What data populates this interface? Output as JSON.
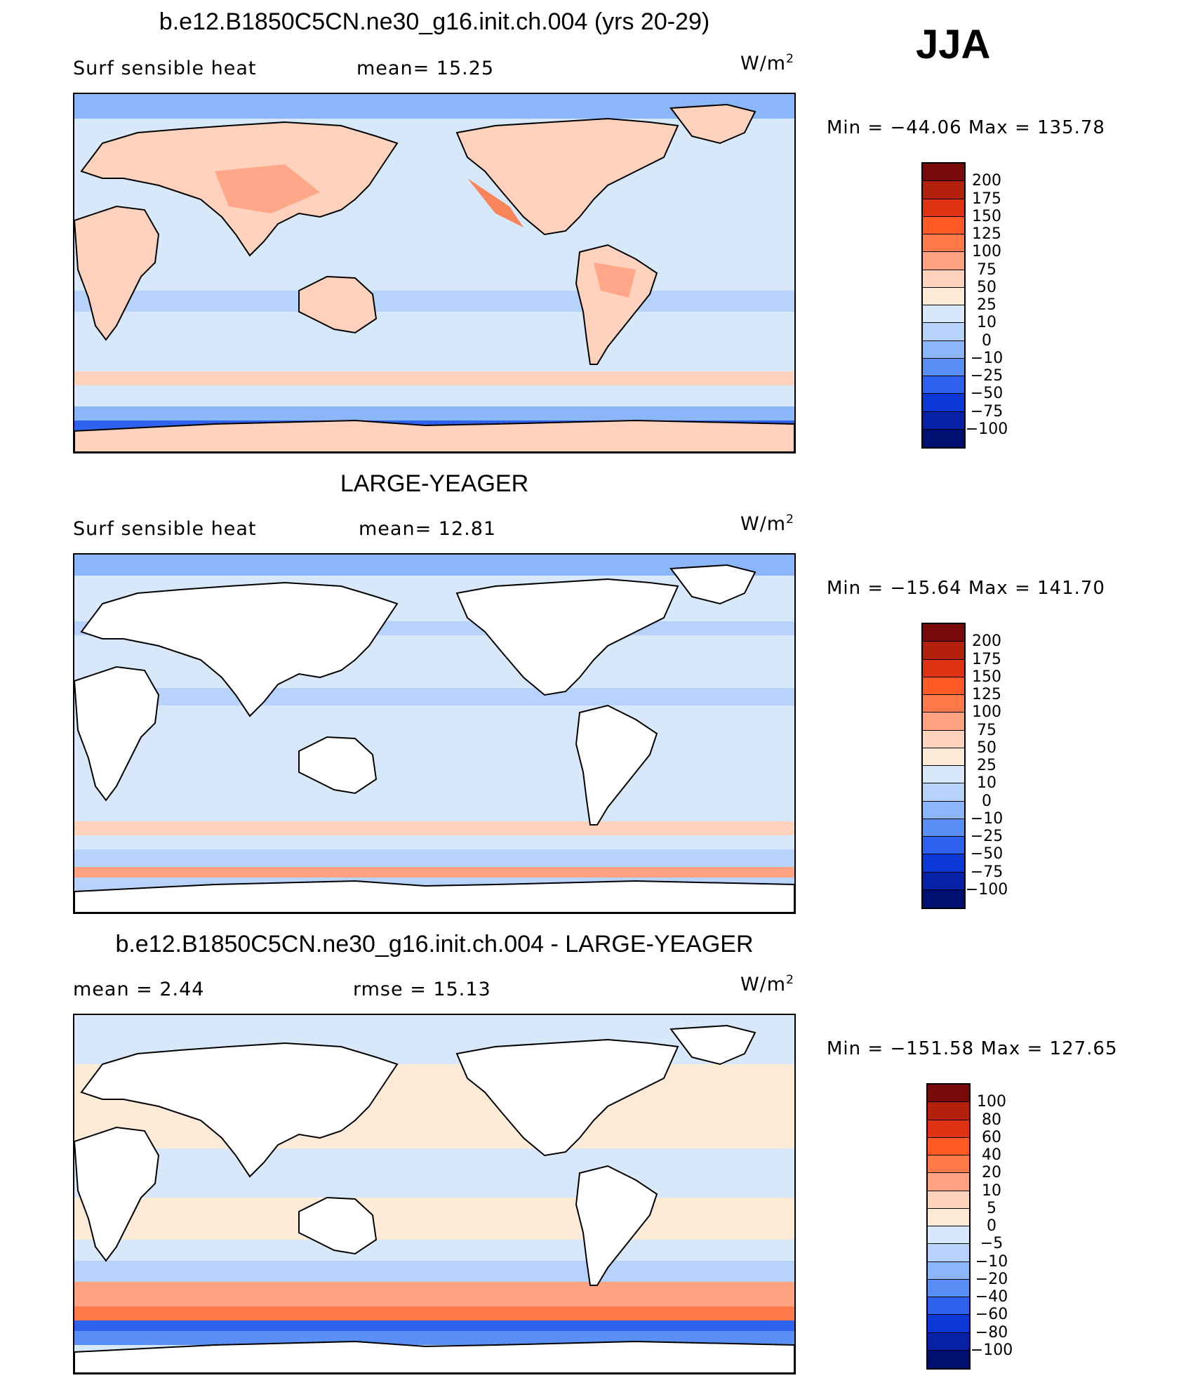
{
  "season": "JJA",
  "panels": [
    {
      "title": "b.e12.B1850C5CN.ne30_g16.init.ch.004 (yrs 20-29)",
      "left_label": "Surf  sensible  heat",
      "center_label": "mean=   15.25",
      "unit": "W/m",
      "unit_sup": "2",
      "minmax": "Min  =  −44.06  Max  =  135.78",
      "colorbar_labels": [
        "200",
        "175",
        "150",
        "125",
        "100",
        "75",
        "50",
        "25",
        "10",
        "0",
        "−10",
        "−25",
        "−50",
        "−75",
        "−100"
      ]
    },
    {
      "title": "LARGE-YEAGER",
      "left_label": "Surf  sensible  heat",
      "center_label": "mean=   12.81",
      "unit": "W/m",
      "unit_sup": "2",
      "minmax": "Min  =  −15.64  Max  =  141.70",
      "colorbar_labels": [
        "200",
        "175",
        "150",
        "125",
        "100",
        "75",
        "50",
        "25",
        "10",
        "0",
        "−10",
        "−25",
        "−50",
        "−75",
        "−100"
      ]
    },
    {
      "title": "b.e12.B1850C5CN.ne30_g16.init.ch.004 - LARGE-YEAGER",
      "left_label": "mean  =      2.44",
      "center_label": "rmse  =     15.13",
      "unit": "W/m",
      "unit_sup": "2",
      "minmax": "Min  =  −151.58  Max  =  127.65",
      "colorbar_labels": [
        "100",
        "80",
        "60",
        "40",
        "20",
        "10",
        "5",
        "0",
        "−5",
        "−10",
        "−20",
        "−40",
        "−60",
        "−80",
        "−100"
      ]
    }
  ],
  "colors": {
    "scale": [
      "#7a0a0a",
      "#b3200c",
      "#e03214",
      "#ff5a24",
      "#ff7a48",
      "#ffa282",
      "#ffd2bd",
      "#fdebd8",
      "#d7e8fb",
      "#b7d2fb",
      "#8cb6fa",
      "#5a90f5",
      "#2f62ee",
      "#0d38d8",
      "#0621a8",
      "#001070"
    ],
    "land_white": "#ffffff",
    "coast": "#000000"
  }
}
